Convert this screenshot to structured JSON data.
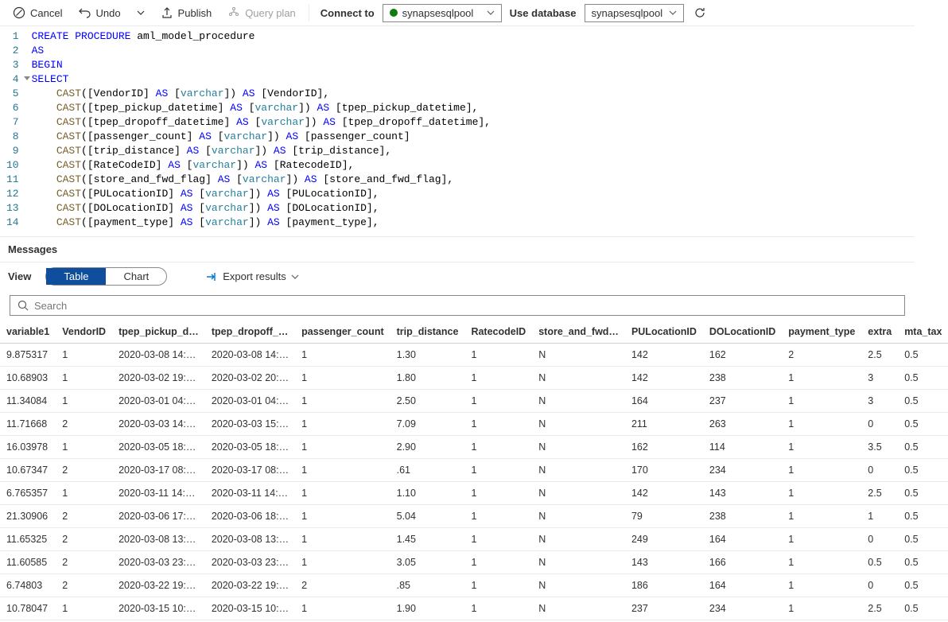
{
  "toolbar": {
    "cancel": "Cancel",
    "undo": "Undo",
    "publish": "Publish",
    "query_plan": "Query plan",
    "connect_to": "Connect to",
    "connect_value": "synapsesqlpool",
    "use_database": "Use database",
    "database_value": "synapsesqlpool"
  },
  "editor": {
    "lines": [
      {
        "n": "1",
        "tokens": [
          [
            "kw",
            "CREATE"
          ],
          [
            "plain",
            " "
          ],
          [
            "kw",
            "PROCEDURE"
          ],
          [
            "plain",
            " aml_model_procedure"
          ]
        ]
      },
      {
        "n": "2",
        "tokens": [
          [
            "kw",
            "AS"
          ]
        ]
      },
      {
        "n": "3",
        "tokens": [
          [
            "kw",
            "BEGIN"
          ]
        ]
      },
      {
        "n": "4",
        "fold": true,
        "tokens": [
          [
            "kw",
            "SELECT"
          ]
        ]
      },
      {
        "n": "5",
        "tokens": [
          [
            "plain",
            "    "
          ],
          [
            "fn",
            "CAST"
          ],
          [
            "plain",
            "([VendorID] "
          ],
          [
            "kw",
            "AS"
          ],
          [
            "plain",
            " ["
          ],
          [
            "ty",
            "varchar"
          ],
          [
            "plain",
            "]) "
          ],
          [
            "kw",
            "AS"
          ],
          [
            "plain",
            " [VendorID],"
          ]
        ]
      },
      {
        "n": "6",
        "tokens": [
          [
            "plain",
            "    "
          ],
          [
            "fn",
            "CAST"
          ],
          [
            "plain",
            "([tpep_pickup_datetime] "
          ],
          [
            "kw",
            "AS"
          ],
          [
            "plain",
            " ["
          ],
          [
            "ty",
            "varchar"
          ],
          [
            "plain",
            "]) "
          ],
          [
            "kw",
            "AS"
          ],
          [
            "plain",
            " [tpep_pickup_datetime],"
          ]
        ]
      },
      {
        "n": "7",
        "tokens": [
          [
            "plain",
            "    "
          ],
          [
            "fn",
            "CAST"
          ],
          [
            "plain",
            "([tpep_dropoff_datetime] "
          ],
          [
            "kw",
            "AS"
          ],
          [
            "plain",
            " ["
          ],
          [
            "ty",
            "varchar"
          ],
          [
            "plain",
            "]) "
          ],
          [
            "kw",
            "AS"
          ],
          [
            "plain",
            " [tpep_dropoff_datetime],"
          ]
        ]
      },
      {
        "n": "8",
        "tokens": [
          [
            "plain",
            "    "
          ],
          [
            "fn",
            "CAST"
          ],
          [
            "plain",
            "([passenger_count] "
          ],
          [
            "kw",
            "AS"
          ],
          [
            "plain",
            " ["
          ],
          [
            "ty",
            "varchar"
          ],
          [
            "plain",
            "]) "
          ],
          [
            "kw",
            "AS"
          ],
          [
            "plain",
            " [passenger_count]"
          ]
        ]
      },
      {
        "n": "9",
        "tokens": [
          [
            "plain",
            "    "
          ],
          [
            "fn",
            "CAST"
          ],
          [
            "plain",
            "([trip_distance] "
          ],
          [
            "kw",
            "AS"
          ],
          [
            "plain",
            " ["
          ],
          [
            "ty",
            "varchar"
          ],
          [
            "plain",
            "]) "
          ],
          [
            "kw",
            "AS"
          ],
          [
            "plain",
            " [trip_distance],"
          ]
        ]
      },
      {
        "n": "10",
        "tokens": [
          [
            "plain",
            "    "
          ],
          [
            "fn",
            "CAST"
          ],
          [
            "plain",
            "([RateCodeID] "
          ],
          [
            "kw",
            "AS"
          ],
          [
            "plain",
            " ["
          ],
          [
            "ty",
            "varchar"
          ],
          [
            "plain",
            "]) "
          ],
          [
            "kw",
            "AS"
          ],
          [
            "plain",
            " [RatecodeID],"
          ]
        ]
      },
      {
        "n": "11",
        "tokens": [
          [
            "plain",
            "    "
          ],
          [
            "fn",
            "CAST"
          ],
          [
            "plain",
            "([store_and_fwd_flag] "
          ],
          [
            "kw",
            "AS"
          ],
          [
            "plain",
            " ["
          ],
          [
            "ty",
            "varchar"
          ],
          [
            "plain",
            "]) "
          ],
          [
            "kw",
            "AS"
          ],
          [
            "plain",
            " [store_and_fwd_flag],"
          ]
        ]
      },
      {
        "n": "12",
        "tokens": [
          [
            "plain",
            "    "
          ],
          [
            "fn",
            "CAST"
          ],
          [
            "plain",
            "([PULocationID] "
          ],
          [
            "kw",
            "AS"
          ],
          [
            "plain",
            " ["
          ],
          [
            "ty",
            "varchar"
          ],
          [
            "plain",
            "]) "
          ],
          [
            "kw",
            "AS"
          ],
          [
            "plain",
            " [PULocationID],"
          ]
        ]
      },
      {
        "n": "13",
        "tokens": [
          [
            "plain",
            "    "
          ],
          [
            "fn",
            "CAST"
          ],
          [
            "plain",
            "([DOLocationID] "
          ],
          [
            "kw",
            "AS"
          ],
          [
            "plain",
            " ["
          ],
          [
            "ty",
            "varchar"
          ],
          [
            "plain",
            "]) "
          ],
          [
            "kw",
            "AS"
          ],
          [
            "plain",
            " [DOLocationID],"
          ]
        ]
      },
      {
        "n": "14",
        "tokens": [
          [
            "plain",
            "    "
          ],
          [
            "fn",
            "CAST"
          ],
          [
            "plain",
            "([payment_type] "
          ],
          [
            "kw",
            "AS"
          ],
          [
            "plain",
            " ["
          ],
          [
            "ty",
            "varchar"
          ],
          [
            "plain",
            "]) "
          ],
          [
            "kw",
            "AS"
          ],
          [
            "plain",
            " [payment_type],"
          ]
        ]
      }
    ]
  },
  "messages_label": "Messages",
  "view_label": "View",
  "toggle": {
    "table": "Table",
    "chart": "Chart"
  },
  "export_label": "Export results",
  "search_placeholder": "Search",
  "results": {
    "columns": [
      "variable1",
      "VendorID",
      "tpep_pickup_d…",
      "tpep_dropoff_…",
      "passenger_count",
      "trip_distance",
      "RatecodeID",
      "store_and_fwd…",
      "PULocationID",
      "DOLocationID",
      "payment_type",
      "extra",
      "mta_tax"
    ],
    "col_classes": [
      "c-var1",
      "c-vendor",
      "c-pickup",
      "c-dropoff",
      "c-pass",
      "c-trip",
      "c-rate",
      "c-store",
      "c-pu",
      "c-do",
      "c-pay",
      "c-extra",
      "c-mta"
    ],
    "rows": [
      [
        "9.875317",
        "1",
        "2020-03-08 14:…",
        "2020-03-08 14:…",
        "1",
        "1.30",
        "1",
        "N",
        "142",
        "162",
        "2",
        "2.5",
        "0.5"
      ],
      [
        "10.68903",
        "1",
        "2020-03-02 19:…",
        "2020-03-02 20:…",
        "1",
        "1.80",
        "1",
        "N",
        "142",
        "238",
        "1",
        "3",
        "0.5"
      ],
      [
        "11.34084",
        "1",
        "2020-03-01 04:…",
        "2020-03-01 04:…",
        "1",
        "2.50",
        "1",
        "N",
        "164",
        "237",
        "1",
        "3",
        "0.5"
      ],
      [
        "11.71668",
        "2",
        "2020-03-03 14:…",
        "2020-03-03 15:…",
        "1",
        "7.09",
        "1",
        "N",
        "211",
        "263",
        "1",
        "0",
        "0.5"
      ],
      [
        "16.03978",
        "1",
        "2020-03-05 18:…",
        "2020-03-05 18:…",
        "1",
        "2.90",
        "1",
        "N",
        "162",
        "114",
        "1",
        "3.5",
        "0.5"
      ],
      [
        "10.67347",
        "2",
        "2020-03-17 08:…",
        "2020-03-17 08:…",
        "1",
        ".61",
        "1",
        "N",
        "170",
        "234",
        "1",
        "0",
        "0.5"
      ],
      [
        "6.765357",
        "1",
        "2020-03-11 14:…",
        "2020-03-11 14:…",
        "1",
        "1.10",
        "1",
        "N",
        "142",
        "143",
        "1",
        "2.5",
        "0.5"
      ],
      [
        "21.30906",
        "2",
        "2020-03-06 17:…",
        "2020-03-06 18:…",
        "1",
        "5.04",
        "1",
        "N",
        "79",
        "238",
        "1",
        "1",
        "0.5"
      ],
      [
        "11.65325",
        "2",
        "2020-03-08 13:…",
        "2020-03-08 13:…",
        "1",
        "1.45",
        "1",
        "N",
        "249",
        "164",
        "1",
        "0",
        "0.5"
      ],
      [
        "11.60585",
        "2",
        "2020-03-03 23:…",
        "2020-03-03 23:…",
        "1",
        "3.05",
        "1",
        "N",
        "143",
        "166",
        "1",
        "0.5",
        "0.5"
      ],
      [
        "6.74803",
        "2",
        "2020-03-22 19:…",
        "2020-03-22 19:…",
        "2",
        ".85",
        "1",
        "N",
        "186",
        "164",
        "1",
        "0",
        "0.5"
      ],
      [
        "10.78047",
        "1",
        "2020-03-15 10:…",
        "2020-03-15 10:…",
        "1",
        "1.90",
        "1",
        "N",
        "237",
        "234",
        "1",
        "2.5",
        "0.5"
      ]
    ]
  }
}
